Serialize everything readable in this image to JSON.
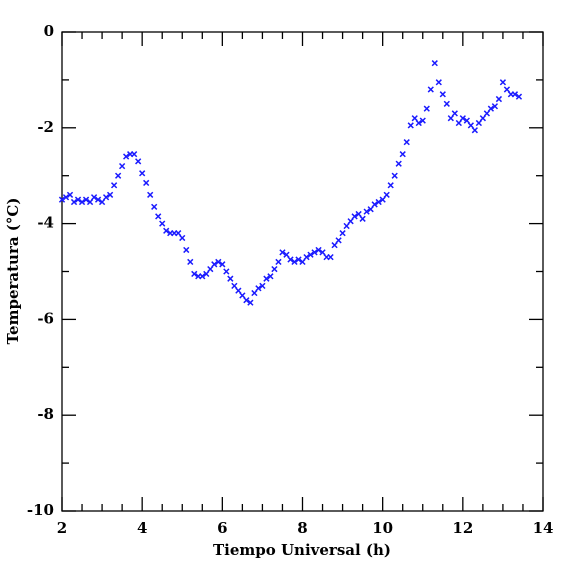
{
  "chart_data": {
    "type": "scatter",
    "xlabel": "Tiempo Universal (h)",
    "ylabel": "Temperatura (°C)",
    "xlim": [
      2,
      14
    ],
    "ylim": [
      -10,
      0
    ],
    "xticks": [
      2,
      4,
      6,
      8,
      10,
      12,
      14
    ],
    "yticks": [
      -10,
      -8,
      -6,
      -4,
      -2,
      0
    ],
    "xminorticks": [
      2.5,
      3,
      3.5,
      4.5,
      5,
      5.5,
      6.5,
      7,
      7.5,
      8.5,
      9,
      9.5,
      10.5,
      11,
      11.5,
      12.5,
      13,
      13.5
    ],
    "yminorticks": [
      -9,
      -7,
      -5,
      -3,
      -1
    ],
    "color": "#1a1aff",
    "x": [
      2.0,
      2.1,
      2.2,
      2.3,
      2.4,
      2.5,
      2.6,
      2.7,
      2.8,
      2.9,
      3.0,
      3.1,
      3.2,
      3.3,
      3.4,
      3.5,
      3.6,
      3.7,
      3.8,
      3.9,
      4.0,
      4.1,
      4.2,
      4.3,
      4.4,
      4.5,
      4.6,
      4.7,
      4.8,
      4.9,
      5.0,
      5.1,
      5.2,
      5.3,
      5.4,
      5.5,
      5.6,
      5.7,
      5.8,
      5.9,
      6.0,
      6.1,
      6.2,
      6.3,
      6.4,
      6.5,
      6.6,
      6.7,
      6.8,
      6.9,
      7.0,
      7.1,
      7.2,
      7.3,
      7.4,
      7.5,
      7.6,
      7.7,
      7.8,
      7.9,
      8.0,
      8.1,
      8.2,
      8.3,
      8.4,
      8.5,
      8.6,
      8.7,
      8.8,
      8.9,
      9.0,
      9.1,
      9.2,
      9.3,
      9.4,
      9.5,
      9.6,
      9.7,
      9.8,
      9.9,
      10.0,
      10.1,
      10.2,
      10.3,
      10.4,
      10.5,
      10.6,
      10.7,
      10.8,
      10.9,
      11.0,
      11.1,
      11.2,
      11.3,
      11.4,
      11.5,
      11.6,
      11.7,
      11.8,
      11.9,
      12.0,
      12.1,
      12.2,
      12.3,
      12.4,
      12.5,
      12.6,
      12.7,
      12.8,
      12.9,
      13.0,
      13.1,
      13.2,
      13.3,
      13.4
    ],
    "values": [
      -3.5,
      -3.45,
      -3.4,
      -3.55,
      -3.5,
      -3.55,
      -3.5,
      -3.55,
      -3.45,
      -3.5,
      -3.55,
      -3.45,
      -3.4,
      -3.2,
      -3.0,
      -2.8,
      -2.6,
      -2.55,
      -2.55,
      -2.7,
      -2.95,
      -3.15,
      -3.4,
      -3.65,
      -3.85,
      -4.0,
      -4.15,
      -4.2,
      -4.2,
      -4.2,
      -4.3,
      -4.55,
      -4.8,
      -5.05,
      -5.1,
      -5.1,
      -5.05,
      -4.95,
      -4.85,
      -4.8,
      -4.85,
      -5.0,
      -5.15,
      -5.3,
      -5.4,
      -5.5,
      -5.6,
      -5.65,
      -5.45,
      -5.35,
      -5.3,
      -5.15,
      -5.1,
      -4.95,
      -4.8,
      -4.6,
      -4.65,
      -4.75,
      -4.8,
      -4.75,
      -4.8,
      -4.7,
      -4.65,
      -4.6,
      -4.55,
      -4.6,
      -4.7,
      -4.7,
      -4.45,
      -4.35,
      -4.2,
      -4.05,
      -3.95,
      -3.85,
      -3.8,
      -3.9,
      -3.75,
      -3.7,
      -3.6,
      -3.55,
      -3.5,
      -3.4,
      -3.2,
      -3.0,
      -2.75,
      -2.55,
      -2.3,
      -1.95,
      -1.8,
      -1.9,
      -1.85,
      -1.6,
      -1.2,
      -0.65,
      -1.05,
      -1.3,
      -1.5,
      -1.8,
      -1.7,
      -1.9,
      -1.8,
      -1.85,
      -1.95,
      -2.05,
      -1.9,
      -1.8,
      -1.7,
      -1.6,
      -1.55,
      -1.4,
      -1.05,
      -1.2,
      -1.3,
      -1.3,
      -1.35
    ]
  }
}
